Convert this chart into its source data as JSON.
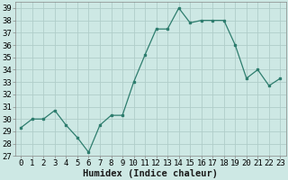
{
  "x": [
    0,
    1,
    2,
    3,
    4,
    5,
    6,
    7,
    8,
    9,
    10,
    11,
    12,
    13,
    14,
    15,
    16,
    17,
    18,
    19,
    20,
    21,
    22,
    23
  ],
  "y": [
    29.3,
    30.0,
    30.0,
    30.7,
    29.5,
    28.5,
    27.3,
    29.5,
    30.3,
    30.3,
    33.0,
    35.2,
    37.3,
    37.3,
    39.0,
    37.8,
    38.0,
    38.0,
    38.0,
    36.0,
    33.3,
    34.0,
    32.7,
    33.3
  ],
  "line_color": "#2e7d6e",
  "marker": "s",
  "marker_size": 2.0,
  "bg_color": "#cde8e4",
  "grid_color": "#b0cdc9",
  "xlabel": "Humidex (Indice chaleur)",
  "ylim": [
    27,
    39.5
  ],
  "xlim": [
    -0.5,
    23.5
  ],
  "yticks": [
    27,
    28,
    29,
    30,
    31,
    32,
    33,
    34,
    35,
    36,
    37,
    38,
    39
  ],
  "tick_fontsize": 6.5,
  "xlabel_fontsize": 7.5
}
